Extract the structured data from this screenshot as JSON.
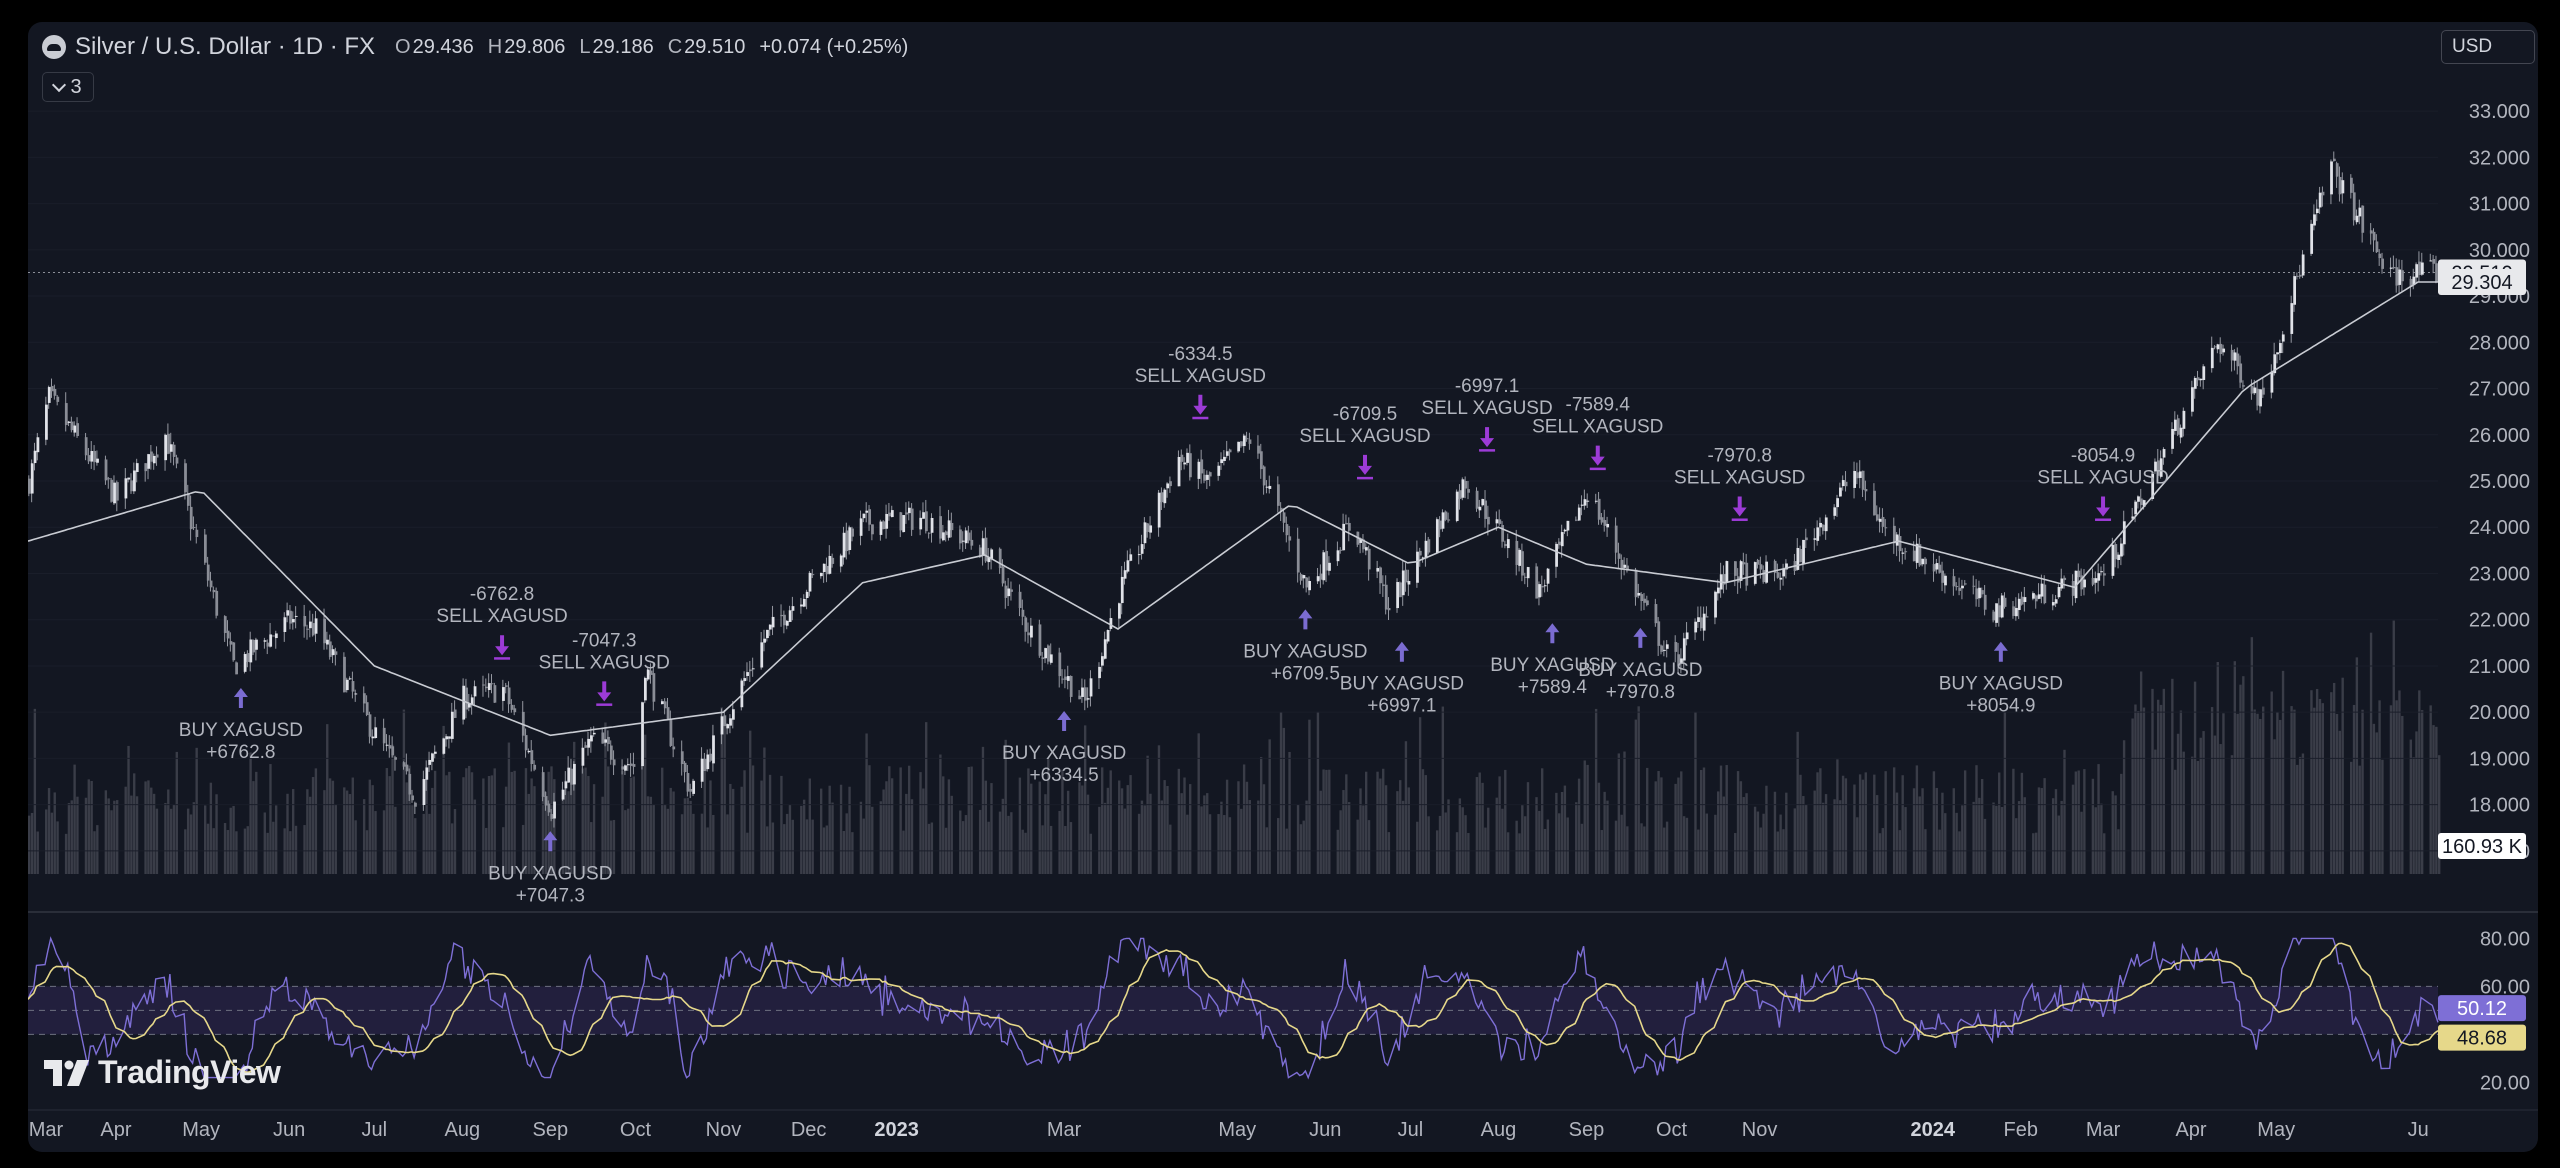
{
  "header": {
    "symbol": "Silver / U.S. Dollar · 1D · FX",
    "open_key": "O",
    "open": "29.436",
    "high_key": "H",
    "high": "29.806",
    "low_key": "L",
    "low": "29.186",
    "close_key": "C",
    "close": "29.510",
    "change": "+0.074 (+0.25%)",
    "indicator_count": "3"
  },
  "currency_button": "USD",
  "brand": "TradingView",
  "colors": {
    "background": "#131722",
    "candle": "#d1d4dc",
    "ma_line": "#c9ccd3",
    "trade_marker": "#9c3bd6",
    "buy_arrow": "#7b6cd1",
    "rsi_line": "#7e6fd6",
    "rsi_ma_line": "#e6d88a",
    "rsi_band": "#221f3d"
  },
  "chart_data": [
    {
      "type": "candlestick",
      "title": "",
      "series_name": "Silver / U.S. Dollar",
      "x_ticks": [
        "Mar",
        "Apr",
        "May",
        "Jun",
        "Jul",
        "Aug",
        "Sep",
        "Oct",
        "Nov",
        "Dec",
        "2023",
        "Mar",
        "May",
        "Jun",
        "Jul",
        "Aug",
        "Sep",
        "Oct",
        "Nov",
        "2024",
        "Feb",
        "Mar",
        "Apr",
        "May",
        "Ju"
      ],
      "y_ticks": [
        "33.000",
        "32.000",
        "31.000",
        "30.000",
        "29.000",
        "28.000",
        "27.000",
        "26.000",
        "25.000",
        "24.000",
        "23.000",
        "22.000",
        "21.000",
        "20.000",
        "19.000",
        "18.000",
        "17.000"
      ],
      "ylim": [
        16.5,
        33.5
      ],
      "last_price": "29.510",
      "ma_value": "29.304",
      "volume_last": "160.93 K",
      "price_path": [
        {
          "x": "2022-03",
          "y": 25.0
        },
        {
          "x": "2022-03-08",
          "y": 26.8
        },
        {
          "x": "2022-04-01",
          "y": 24.6
        },
        {
          "x": "2022-04-18",
          "y": 26.0
        },
        {
          "x": "2022-05-12",
          "y": 21.0
        },
        {
          "x": "2022-06-01",
          "y": 22.0
        },
        {
          "x": "2022-06-10",
          "y": 21.8
        },
        {
          "x": "2022-07-01",
          "y": 19.5
        },
        {
          "x": "2022-07-15",
          "y": 18.2
        },
        {
          "x": "2022-08-01",
          "y": 20.3
        },
        {
          "x": "2022-08-15",
          "y": 20.5
        },
        {
          "x": "2022-09-01",
          "y": 17.9
        },
        {
          "x": "2022-09-15",
          "y": 19.4
        },
        {
          "x": "2022-10-01",
          "y": 18.8
        },
        {
          "x": "2022-10-04",
          "y": 21.0
        },
        {
          "x": "2022-10-20",
          "y": 18.3
        },
        {
          "x": "2022-11-15",
          "y": 21.6
        },
        {
          "x": "2022-12-01",
          "y": 22.8
        },
        {
          "x": "2022-12-20",
          "y": 24.1
        },
        {
          "x": "2023-01-10",
          "y": 24.2
        },
        {
          "x": "2023-02-01",
          "y": 23.5
        },
        {
          "x": "2023-02-15",
          "y": 21.9
        },
        {
          "x": "2023-03-08",
          "y": 20.2
        },
        {
          "x": "2023-03-20",
          "y": 22.6
        },
        {
          "x": "2023-04-10",
          "y": 25.5
        },
        {
          "x": "2023-04-20",
          "y": 25.0
        },
        {
          "x": "2023-05-05",
          "y": 25.9
        },
        {
          "x": "2023-05-25",
          "y": 22.7
        },
        {
          "x": "2023-06-10",
          "y": 24.1
        },
        {
          "x": "2023-06-23",
          "y": 22.3
        },
        {
          "x": "2023-07-20",
          "y": 25.0
        },
        {
          "x": "2023-08-15",
          "y": 22.6
        },
        {
          "x": "2023-09-01",
          "y": 24.8
        },
        {
          "x": "2023-09-15",
          "y": 23.0
        },
        {
          "x": "2023-10-01",
          "y": 21.0
        },
        {
          "x": "2023-10-20",
          "y": 23.0
        },
        {
          "x": "2023-11-10",
          "y": 23.0
        },
        {
          "x": "2023-12-04",
          "y": 25.2
        },
        {
          "x": "2023-12-15",
          "y": 23.9
        },
        {
          "x": "2024-01-22",
          "y": 22.2
        },
        {
          "x": "2024-02-20",
          "y": 22.8
        },
        {
          "x": "2024-03-01",
          "y": 23.0
        },
        {
          "x": "2024-04-10",
          "y": 28.0
        },
        {
          "x": "2024-04-25",
          "y": 26.8
        },
        {
          "x": "2024-05-20",
          "y": 31.8
        },
        {
          "x": "2024-06-10",
          "y": 29.4
        },
        {
          "x": "2024-06-20",
          "y": 29.5
        }
      ],
      "ma_path": [
        {
          "x": "2022-03",
          "y": 23.7
        },
        {
          "x": "2022-05",
          "y": 24.8
        },
        {
          "x": "2022-07",
          "y": 21.0
        },
        {
          "x": "2022-09",
          "y": 19.5
        },
        {
          "x": "2022-11",
          "y": 20.0
        },
        {
          "x": "2022-12-20",
          "y": 22.8
        },
        {
          "x": "2023-02",
          "y": 23.4
        },
        {
          "x": "2023-03-20",
          "y": 21.8
        },
        {
          "x": "2023-05-20",
          "y": 24.5
        },
        {
          "x": "2023-07-01",
          "y": 23.2
        },
        {
          "x": "2023-08-01",
          "y": 24.0
        },
        {
          "x": "2023-09-01",
          "y": 23.2
        },
        {
          "x": "2023-10-20",
          "y": 22.8
        },
        {
          "x": "2023-12-20",
          "y": 23.7
        },
        {
          "x": "2024-02-20",
          "y": 22.7
        },
        {
          "x": "2024-04-20",
          "y": 27.0
        },
        {
          "x": "2024-06-20",
          "y": 29.304
        }
      ],
      "trades": [
        {
          "side": "BUY",
          "symbol": "XAGUSD",
          "pnl": "+6762.8",
          "date": "2022-05-15",
          "price": 21.0
        },
        {
          "side": "SELL",
          "symbol": "XAGUSD",
          "pnl": "-6762.8",
          "date": "2022-08-15",
          "price": 20.8
        },
        {
          "side": "BUY",
          "symbol": "XAGUSD",
          "pnl": "+7047.3",
          "date": "2022-09-01",
          "price": 17.9
        },
        {
          "side": "SELL",
          "symbol": "XAGUSD",
          "pnl": "-7047.3",
          "date": "2022-09-20",
          "price": 19.8
        },
        {
          "side": "BUY",
          "symbol": "XAGUSD",
          "pnl": "+6334.5",
          "date": "2023-03-01",
          "price": 20.5
        },
        {
          "side": "SELL",
          "symbol": "XAGUSD",
          "pnl": "-6334.5",
          "date": "2023-04-18",
          "price": 26.0
        },
        {
          "side": "BUY",
          "symbol": "XAGUSD",
          "pnl": "+6709.5",
          "date": "2023-05-25",
          "price": 22.7
        },
        {
          "side": "SELL",
          "symbol": "XAGUSD",
          "pnl": "-6709.5",
          "date": "2023-06-15",
          "price": 24.7
        },
        {
          "side": "BUY",
          "symbol": "XAGUSD",
          "pnl": "+6997.1",
          "date": "2023-06-28",
          "price": 22.0
        },
        {
          "side": "SELL",
          "symbol": "XAGUSD",
          "pnl": "-6997.1",
          "date": "2023-07-28",
          "price": 25.3
        },
        {
          "side": "BUY",
          "symbol": "XAGUSD",
          "pnl": "+7589.4",
          "date": "2023-08-20",
          "price": 22.4
        },
        {
          "side": "SELL",
          "symbol": "XAGUSD",
          "pnl": "-7589.4",
          "date": "2023-09-05",
          "price": 24.9
        },
        {
          "side": "BUY",
          "symbol": "XAGUSD",
          "pnl": "+7970.8",
          "date": "2023-09-20",
          "price": 22.3
        },
        {
          "side": "SELL",
          "symbol": "XAGUSD",
          "pnl": "-7970.8",
          "date": "2023-10-25",
          "price": 23.8
        },
        {
          "side": "BUY",
          "symbol": "XAGUSD",
          "pnl": "+8054.9",
          "date": "2024-01-25",
          "price": 22.0
        },
        {
          "side": "SELL",
          "symbol": "XAGUSD",
          "pnl": "-8054.9",
          "date": "2024-03-01",
          "price": 23.8
        }
      ]
    },
    {
      "type": "line",
      "title": "",
      "y_ticks": [
        "80.00",
        "60.00",
        "20.00"
      ],
      "ylim": [
        16,
        86
      ],
      "band": [
        40,
        60
      ],
      "mid_line": 50,
      "current_values": [
        "50.12",
        "48.68"
      ]
    }
  ]
}
